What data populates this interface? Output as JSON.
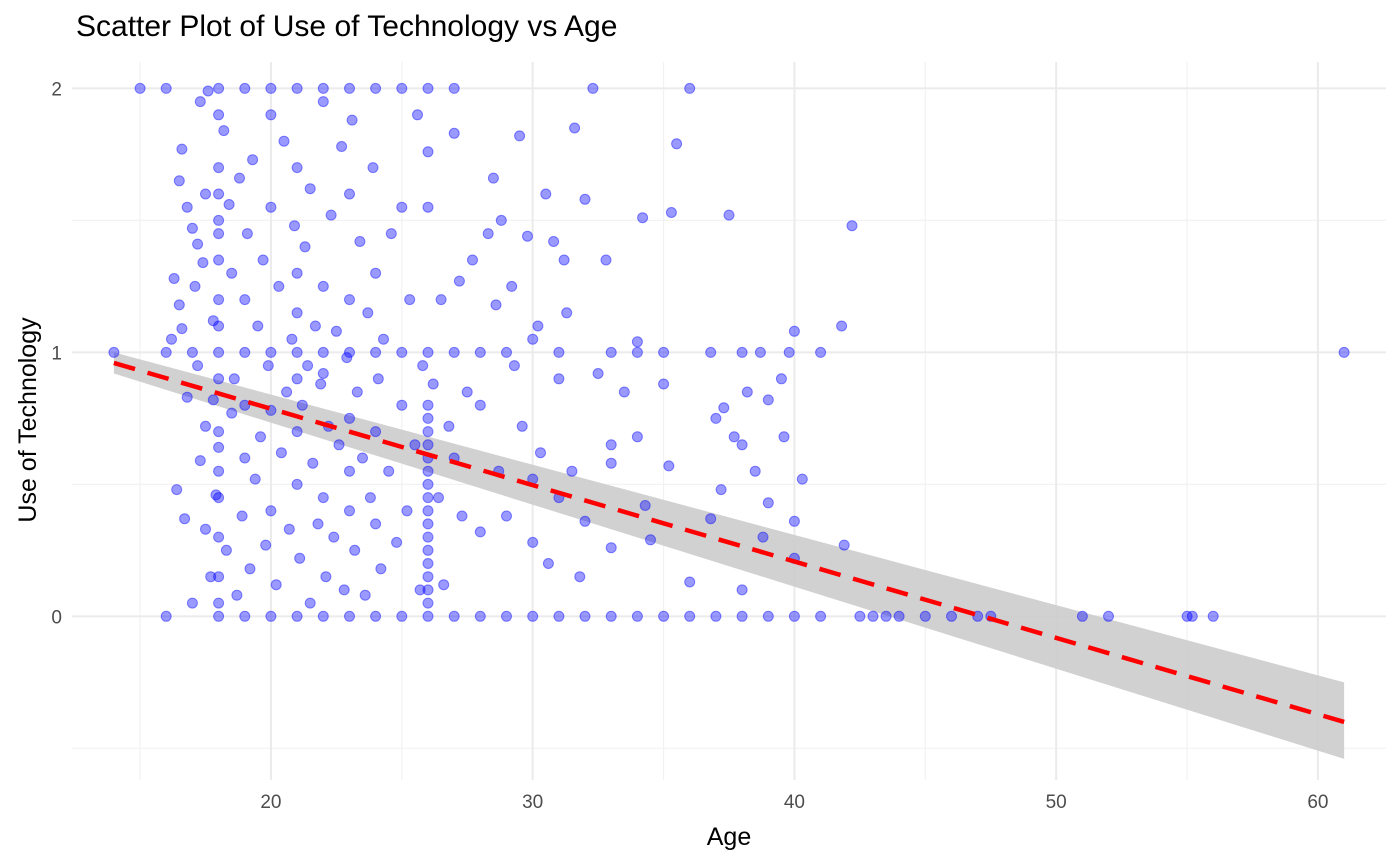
{
  "chart_data": {
    "type": "scatter",
    "title": "Scatter Plot of Use of Technology vs Age",
    "xlabel": "Age",
    "ylabel": "Use of Technology",
    "xlim": [
      12.4,
      62.6
    ],
    "ylim": [
      -0.62,
      2.1
    ],
    "x_ticks": [
      20,
      30,
      40,
      50,
      60
    ],
    "y_ticks": [
      0,
      1,
      2
    ],
    "grid": true,
    "legend": "none",
    "colors": {
      "points": "#0000ff",
      "trend_line": "#ff0000",
      "confidence_band": "#cccccc",
      "grid_major": "#ebebeb",
      "grid_minor": "#f2f2f2"
    },
    "trend_line": {
      "style": "dashed",
      "x": [
        14,
        61
      ],
      "y": [
        0.96,
        -0.4
      ]
    },
    "confidence_band": {
      "x": [
        14,
        61
      ],
      "upper": [
        1.0,
        -0.25
      ],
      "lower": [
        0.92,
        -0.54
      ]
    },
    "points": [
      [
        14,
        1
      ],
      [
        15,
        2
      ],
      [
        16,
        2
      ],
      [
        16,
        0
      ],
      [
        16,
        1
      ],
      [
        16.2,
        1.05
      ],
      [
        16.3,
        1.28
      ],
      [
        16.4,
        0.48
      ],
      [
        16.5,
        1.18
      ],
      [
        16.5,
        1.65
      ],
      [
        16.6,
        1.77
      ],
      [
        16.6,
        1.09
      ],
      [
        16.7,
        0.37
      ],
      [
        16.8,
        1.55
      ],
      [
        16.8,
        0.83
      ],
      [
        17,
        1.47
      ],
      [
        17,
        1.0
      ],
      [
        17,
        0.05
      ],
      [
        17.1,
        1.25
      ],
      [
        17.2,
        1.41
      ],
      [
        17.2,
        0.95
      ],
      [
        17.3,
        0.59
      ],
      [
        17.3,
        1.95
      ],
      [
        17.4,
        1.34
      ],
      [
        17.5,
        0.72
      ],
      [
        17.5,
        1.6
      ],
      [
        17.5,
        0.33
      ],
      [
        17.6,
        1.99
      ],
      [
        17.7,
        0.15
      ],
      [
        17.8,
        1.12
      ],
      [
        17.8,
        0.82
      ],
      [
        17.9,
        0.46
      ],
      [
        18,
        0.64
      ],
      [
        18,
        1.0
      ],
      [
        18,
        2
      ],
      [
        18,
        0
      ],
      [
        18,
        0.3
      ],
      [
        18,
        0.45
      ],
      [
        18,
        0.55
      ],
      [
        18,
        0.7
      ],
      [
        18,
        0.9
      ],
      [
        18,
        1.1
      ],
      [
        18,
        1.2
      ],
      [
        18,
        1.35
      ],
      [
        18,
        1.45
      ],
      [
        18,
        1.5
      ],
      [
        18,
        1.6
      ],
      [
        18,
        1.7
      ],
      [
        18,
        1.9
      ],
      [
        18,
        0.15
      ],
      [
        18,
        0.05
      ],
      [
        18.2,
        1.84
      ],
      [
        18.3,
        0.25
      ],
      [
        18.4,
        1.56
      ],
      [
        18.5,
        0.77
      ],
      [
        18.5,
        1.3
      ],
      [
        18.6,
        0.9
      ],
      [
        18.7,
        0.08
      ],
      [
        18.8,
        1.66
      ],
      [
        18.9,
        0.38
      ],
      [
        19,
        0.8
      ],
      [
        19,
        1.0
      ],
      [
        19,
        2
      ],
      [
        19,
        0
      ],
      [
        19,
        0.6
      ],
      [
        19,
        1.2
      ],
      [
        19.1,
        1.45
      ],
      [
        19.2,
        0.18
      ],
      [
        19.3,
        1.73
      ],
      [
        19.4,
        0.52
      ],
      [
        19.5,
        1.1
      ],
      [
        19.6,
        0.68
      ],
      [
        19.7,
        1.35
      ],
      [
        19.8,
        0.27
      ],
      [
        19.9,
        0.95
      ],
      [
        20,
        0.78
      ],
      [
        20,
        1.0
      ],
      [
        20,
        2
      ],
      [
        20,
        0
      ],
      [
        20,
        0.4
      ],
      [
        20,
        1.55
      ],
      [
        20,
        1.9
      ],
      [
        20.2,
        0.12
      ],
      [
        20.3,
        1.25
      ],
      [
        20.4,
        0.62
      ],
      [
        20.5,
        1.8
      ],
      [
        20.6,
        0.85
      ],
      [
        20.7,
        0.33
      ],
      [
        20.8,
        1.05
      ],
      [
        20.9,
        1.48
      ],
      [
        21,
        0.9
      ],
      [
        21,
        1.0
      ],
      [
        21,
        2
      ],
      [
        21,
        0
      ],
      [
        21,
        0.5
      ],
      [
        21,
        0.7
      ],
      [
        21,
        1.15
      ],
      [
        21,
        1.3
      ],
      [
        21,
        1.7
      ],
      [
        21.1,
        0.22
      ],
      [
        21.2,
        0.8
      ],
      [
        21.3,
        1.4
      ],
      [
        21.4,
        0.95
      ],
      [
        21.5,
        0.05
      ],
      [
        21.5,
        1.62
      ],
      [
        21.6,
        0.58
      ],
      [
        21.7,
        1.1
      ],
      [
        21.8,
        0.35
      ],
      [
        21.9,
        0.88
      ],
      [
        22,
        0.92
      ],
      [
        22,
        1.0
      ],
      [
        22,
        2
      ],
      [
        22,
        0
      ],
      [
        22,
        0.45
      ],
      [
        22,
        1.25
      ],
      [
        22,
        1.95
      ],
      [
        22.1,
        0.15
      ],
      [
        22.2,
        0.72
      ],
      [
        22.3,
        1.52
      ],
      [
        22.4,
        0.3
      ],
      [
        22.5,
        1.08
      ],
      [
        22.6,
        0.65
      ],
      [
        22.7,
        1.78
      ],
      [
        22.8,
        0.1
      ],
      [
        22.9,
        0.98
      ],
      [
        23,
        0.75
      ],
      [
        23,
        1.0
      ],
      [
        23,
        2
      ],
      [
        23,
        0
      ],
      [
        23,
        0.4
      ],
      [
        23,
        1.2
      ],
      [
        23,
        1.6
      ],
      [
        23,
        0.55
      ],
      [
        23.1,
        1.88
      ],
      [
        23.2,
        0.25
      ],
      [
        23.3,
        0.85
      ],
      [
        23.4,
        1.42
      ],
      [
        23.5,
        0.6
      ],
      [
        23.6,
        0.08
      ],
      [
        23.7,
        1.15
      ],
      [
        23.8,
        0.45
      ],
      [
        23.9,
        1.7
      ],
      [
        24,
        0.7
      ],
      [
        24,
        1.0
      ],
      [
        24,
        2
      ],
      [
        24,
        0
      ],
      [
        24,
        0.35
      ],
      [
        24,
        1.3
      ],
      [
        24.1,
        0.9
      ],
      [
        24.2,
        0.18
      ],
      [
        24.3,
        1.05
      ],
      [
        24.5,
        0.55
      ],
      [
        24.6,
        1.45
      ],
      [
        24.8,
        0.28
      ],
      [
        25,
        0.8
      ],
      [
        25,
        1.0
      ],
      [
        25,
        2
      ],
      [
        25,
        0
      ],
      [
        25,
        1.55
      ],
      [
        25.2,
        0.4
      ],
      [
        25.3,
        1.2
      ],
      [
        25.5,
        0.65
      ],
      [
        25.6,
        1.9
      ],
      [
        25.7,
        0.1
      ],
      [
        25.8,
        0.95
      ],
      [
        26,
        0.05
      ],
      [
        26,
        0.1
      ],
      [
        26,
        0.15
      ],
      [
        26,
        0.2
      ],
      [
        26,
        0.25
      ],
      [
        26,
        0.3
      ],
      [
        26,
        0.35
      ],
      [
        26,
        0.4
      ],
      [
        26,
        0.45
      ],
      [
        26,
        0.5
      ],
      [
        26,
        0.55
      ],
      [
        26,
        0.6
      ],
      [
        26,
        0.65
      ],
      [
        26,
        0.7
      ],
      [
        26,
        0.75
      ],
      [
        26,
        0.8
      ],
      [
        26,
        1.0
      ],
      [
        26,
        2
      ],
      [
        26,
        0
      ],
      [
        26,
        1.55
      ],
      [
        26,
        1.76
      ],
      [
        26.2,
        0.88
      ],
      [
        26.4,
        0.45
      ],
      [
        26.5,
        1.2
      ],
      [
        26.6,
        0.12
      ],
      [
        26.8,
        0.72
      ],
      [
        27,
        1.0
      ],
      [
        27,
        0
      ],
      [
        27,
        2
      ],
      [
        27,
        0.6
      ],
      [
        27,
        1.83
      ],
      [
        27.2,
        1.27
      ],
      [
        27.3,
        0.38
      ],
      [
        27.5,
        0.85
      ],
      [
        27.7,
        1.35
      ],
      [
        28,
        0.8
      ],
      [
        28,
        0.32
      ],
      [
        28,
        1.0
      ],
      [
        28,
        0
      ],
      [
        28.3,
        1.45
      ],
      [
        28.5,
        1.66
      ],
      [
        28.6,
        1.18
      ],
      [
        28.7,
        0.55
      ],
      [
        28.8,
        1.5
      ],
      [
        29,
        1.0
      ],
      [
        29,
        0
      ],
      [
        29,
        0.38
      ],
      [
        29.2,
        1.25
      ],
      [
        29.3,
        0.95
      ],
      [
        29.5,
        1.82
      ],
      [
        29.6,
        0.72
      ],
      [
        29.8,
        1.44
      ],
      [
        30,
        0.28
      ],
      [
        30,
        1.05
      ],
      [
        30,
        0
      ],
      [
        30,
        0.52
      ],
      [
        30.2,
        1.1
      ],
      [
        30.3,
        0.62
      ],
      [
        30.5,
        1.6
      ],
      [
        30.6,
        0.2
      ],
      [
        30.8,
        1.42
      ],
      [
        31,
        0.9
      ],
      [
        31,
        1.0
      ],
      [
        31,
        0
      ],
      [
        31,
        0.45
      ],
      [
        31.2,
        1.35
      ],
      [
        31.3,
        1.15
      ],
      [
        31.5,
        0.55
      ],
      [
        31.6,
        1.85
      ],
      [
        31.8,
        0.15
      ],
      [
        32,
        1.58
      ],
      [
        32,
        0
      ],
      [
        32,
        0.36
      ],
      [
        32.3,
        2
      ],
      [
        32.5,
        0.92
      ],
      [
        32.8,
        1.35
      ],
      [
        33,
        1.0
      ],
      [
        33,
        0.65
      ],
      [
        33,
        0
      ],
      [
        33,
        0.26
      ],
      [
        33,
        0.58
      ],
      [
        33.5,
        0.85
      ],
      [
        34,
        1.0
      ],
      [
        34,
        0
      ],
      [
        34,
        0.68
      ],
      [
        34,
        1.04
      ],
      [
        34.2,
        1.51
      ],
      [
        34.3,
        0.42
      ],
      [
        34.5,
        0.29
      ],
      [
        35,
        1.0
      ],
      [
        35,
        0
      ],
      [
        35,
        0.88
      ],
      [
        35.2,
        0.57
      ],
      [
        35.3,
        1.53
      ],
      [
        35.5,
        1.79
      ],
      [
        36,
        2
      ],
      [
        36,
        0
      ],
      [
        36,
        0.13
      ],
      [
        36.8,
        1.0
      ],
      [
        36.8,
        0.37
      ],
      [
        37,
        0.75
      ],
      [
        37,
        0
      ],
      [
        37.2,
        0.48
      ],
      [
        37.3,
        0.79
      ],
      [
        37.5,
        1.52
      ],
      [
        37.7,
        0.68
      ],
      [
        38,
        1.0
      ],
      [
        38,
        0
      ],
      [
        38,
        0.65
      ],
      [
        38,
        0.1
      ],
      [
        38.2,
        0.85
      ],
      [
        38.5,
        0.55
      ],
      [
        38.7,
        1.0
      ],
      [
        38.8,
        0.3
      ],
      [
        39,
        0.82
      ],
      [
        39,
        0.43
      ],
      [
        39,
        0
      ],
      [
        39.5,
        0.9
      ],
      [
        39.6,
        0.68
      ],
      [
        39.8,
        1.0
      ],
      [
        40,
        1.08
      ],
      [
        40,
        0.22
      ],
      [
        40,
        0.36
      ],
      [
        40,
        0
      ],
      [
        40.3,
        0.52
      ],
      [
        41,
        1.0
      ],
      [
        41,
        0
      ],
      [
        41.8,
        1.1
      ],
      [
        41.9,
        0.27
      ],
      [
        42.2,
        1.48
      ],
      [
        42.5,
        0
      ],
      [
        43,
        0
      ],
      [
        43.5,
        0
      ],
      [
        44,
        0
      ],
      [
        45,
        0
      ],
      [
        46,
        0
      ],
      [
        47,
        0
      ],
      [
        47.5,
        0
      ],
      [
        51,
        0
      ],
      [
        52,
        0
      ],
      [
        55,
        0
      ],
      [
        55.2,
        0
      ],
      [
        56,
        0
      ],
      [
        61,
        1
      ]
    ]
  }
}
